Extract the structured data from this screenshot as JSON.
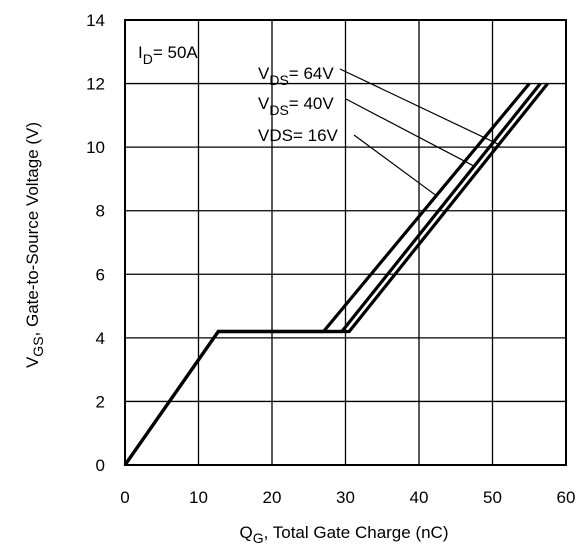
{
  "chart_data": {
    "type": "line",
    "xlabel": {
      "main": "Q",
      "sub": "G",
      "rest": ",  Total Gate Charge (nC)"
    },
    "ylabel": {
      "main": "V",
      "sub": "GS",
      "rest": ", Gate-to-Source Voltage (V)"
    },
    "xlim": [
      0,
      60
    ],
    "ylim": [
      0,
      14
    ],
    "xticks": [
      "0",
      "10",
      "20",
      "30",
      "40",
      "50",
      "60"
    ],
    "yticks": [
      "0",
      "2",
      "4",
      "6",
      "8",
      "10",
      "12",
      "14"
    ],
    "grid": true,
    "annotation_id": {
      "main": "I",
      "sub": "D",
      "rest": "= 50A"
    },
    "series": [
      {
        "name": "VDS= 64V",
        "label_parts": {
          "main": "V",
          "sub": "DS",
          "rest": "= 64V"
        },
        "x": [
          0,
          12.7,
          30.5,
          57.5
        ],
        "y": [
          0,
          4.2,
          4.2,
          12
        ]
      },
      {
        "name": "VDS= 40V",
        "label_parts": {
          "main": "V",
          "sub": "DS",
          "rest": "= 40V"
        },
        "x": [
          0,
          12.7,
          29.5,
          56.5
        ],
        "y": [
          0,
          4.2,
          4.2,
          12
        ]
      },
      {
        "name": "VDS= 16V",
        "label_parts": {
          "main": "VDS",
          "sub": "",
          "rest": "= 16V"
        },
        "x": [
          0,
          12.7,
          27.0,
          55.0
        ],
        "y": [
          0,
          4.2,
          4.2,
          12
        ]
      }
    ],
    "leaders": [
      {
        "series": "VDS= 64V",
        "x": 50.7,
        "y": 10.1
      },
      {
        "series": "VDS= 40V",
        "x": 47.5,
        "y": 9.4
      },
      {
        "series": "VDS= 16V",
        "x": 42.2,
        "y": 8.5
      }
    ]
  }
}
